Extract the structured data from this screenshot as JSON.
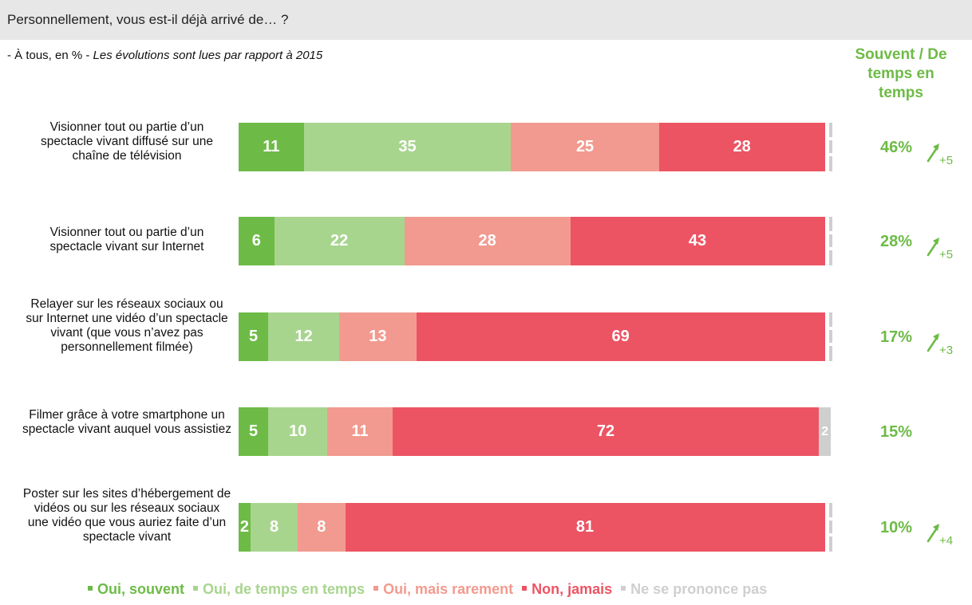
{
  "header": {
    "title": "Personnellement, vous est-il déjà arrivé de… ?",
    "subtitle_prefix": "- À tous, en % - ",
    "subtitle_italic": "Les évolutions sont lues par rapport à 2015",
    "right_column_title": "Souvent / De temps en temps"
  },
  "colors": {
    "oui_souvent": "#6dbb46",
    "oui_de_temps": "#a8d58e",
    "oui_rarement": "#f29a8f",
    "non_jamais": "#ec5463",
    "nsp": "#cfcfcf",
    "accent_text": "#6dbb46"
  },
  "legend": [
    {
      "label": "Oui, souvent",
      "color": "#6dbb46"
    },
    {
      "label": "Oui, de temps en temps",
      "color": "#a8d58e"
    },
    {
      "label": "Oui, mais rarement",
      "color": "#f29a8f"
    },
    {
      "label": "Non, jamais",
      "color": "#ec5463"
    },
    {
      "label": "Ne se prononce pas",
      "color": "#cfcfcf"
    }
  ],
  "rows": [
    {
      "label": "Visionner tout ou partie d’un spectacle vivant diffusé sur une chaîne de télévision",
      "total": "46%",
      "delta": "+5"
    },
    {
      "label": "Visionner tout ou partie d’un spectacle vivant sur Internet",
      "total": "28%",
      "delta": "+5"
    },
    {
      "label": "Relayer sur les réseaux sociaux ou sur Internet une vidéo d’un spectacle vivant (que vous n’avez pas personnellement filmée)",
      "total": "17%",
      "delta": "+3"
    },
    {
      "label": "Filmer grâce à votre smartphone un spectacle vivant auquel vous assistiez",
      "total": "15%",
      "delta": ""
    },
    {
      "label": "Poster sur les sites d’hébergement de vidéos ou sur les réseaux sociaux une vidéo que vous auriez faite d’un spectacle vivant",
      "total": "10%",
      "delta": "+4"
    }
  ],
  "chart_data": {
    "type": "bar",
    "orientation": "horizontal",
    "stacked": true,
    "title": "Personnellement, vous est-il déjà arrivé de… ?",
    "categories": [
      "Visionner tout ou partie d’un spectacle vivant diffusé sur une chaîne de télévision",
      "Visionner tout ou partie d’un spectacle vivant sur Internet",
      "Relayer sur les réseaux sociaux ou sur Internet une vidéo d’un spectacle vivant (que vous n’avez pas personnellement filmée)",
      "Filmer grâce à votre smartphone un spectacle vivant auquel vous assistiez",
      "Poster sur les sites d’hébergement de vidéos ou sur les réseaux sociaux une vidéo que vous auriez faite d’un spectacle vivant"
    ],
    "series": [
      {
        "name": "Oui, souvent",
        "values": [
          11,
          6,
          5,
          5,
          2
        ]
      },
      {
        "name": "Oui, de temps en temps",
        "values": [
          35,
          22,
          12,
          10,
          8
        ]
      },
      {
        "name": "Oui, mais rarement",
        "values": [
          25,
          28,
          13,
          11,
          8
        ]
      },
      {
        "name": "Non, jamais",
        "values": [
          28,
          43,
          69,
          72,
          81
        ]
      },
      {
        "name": "Ne se prononce pas",
        "values": [
          1,
          1,
          1,
          2,
          1
        ]
      }
    ],
    "xlim": [
      0,
      100
    ],
    "legend_position": "bottom",
    "grid": false
  }
}
